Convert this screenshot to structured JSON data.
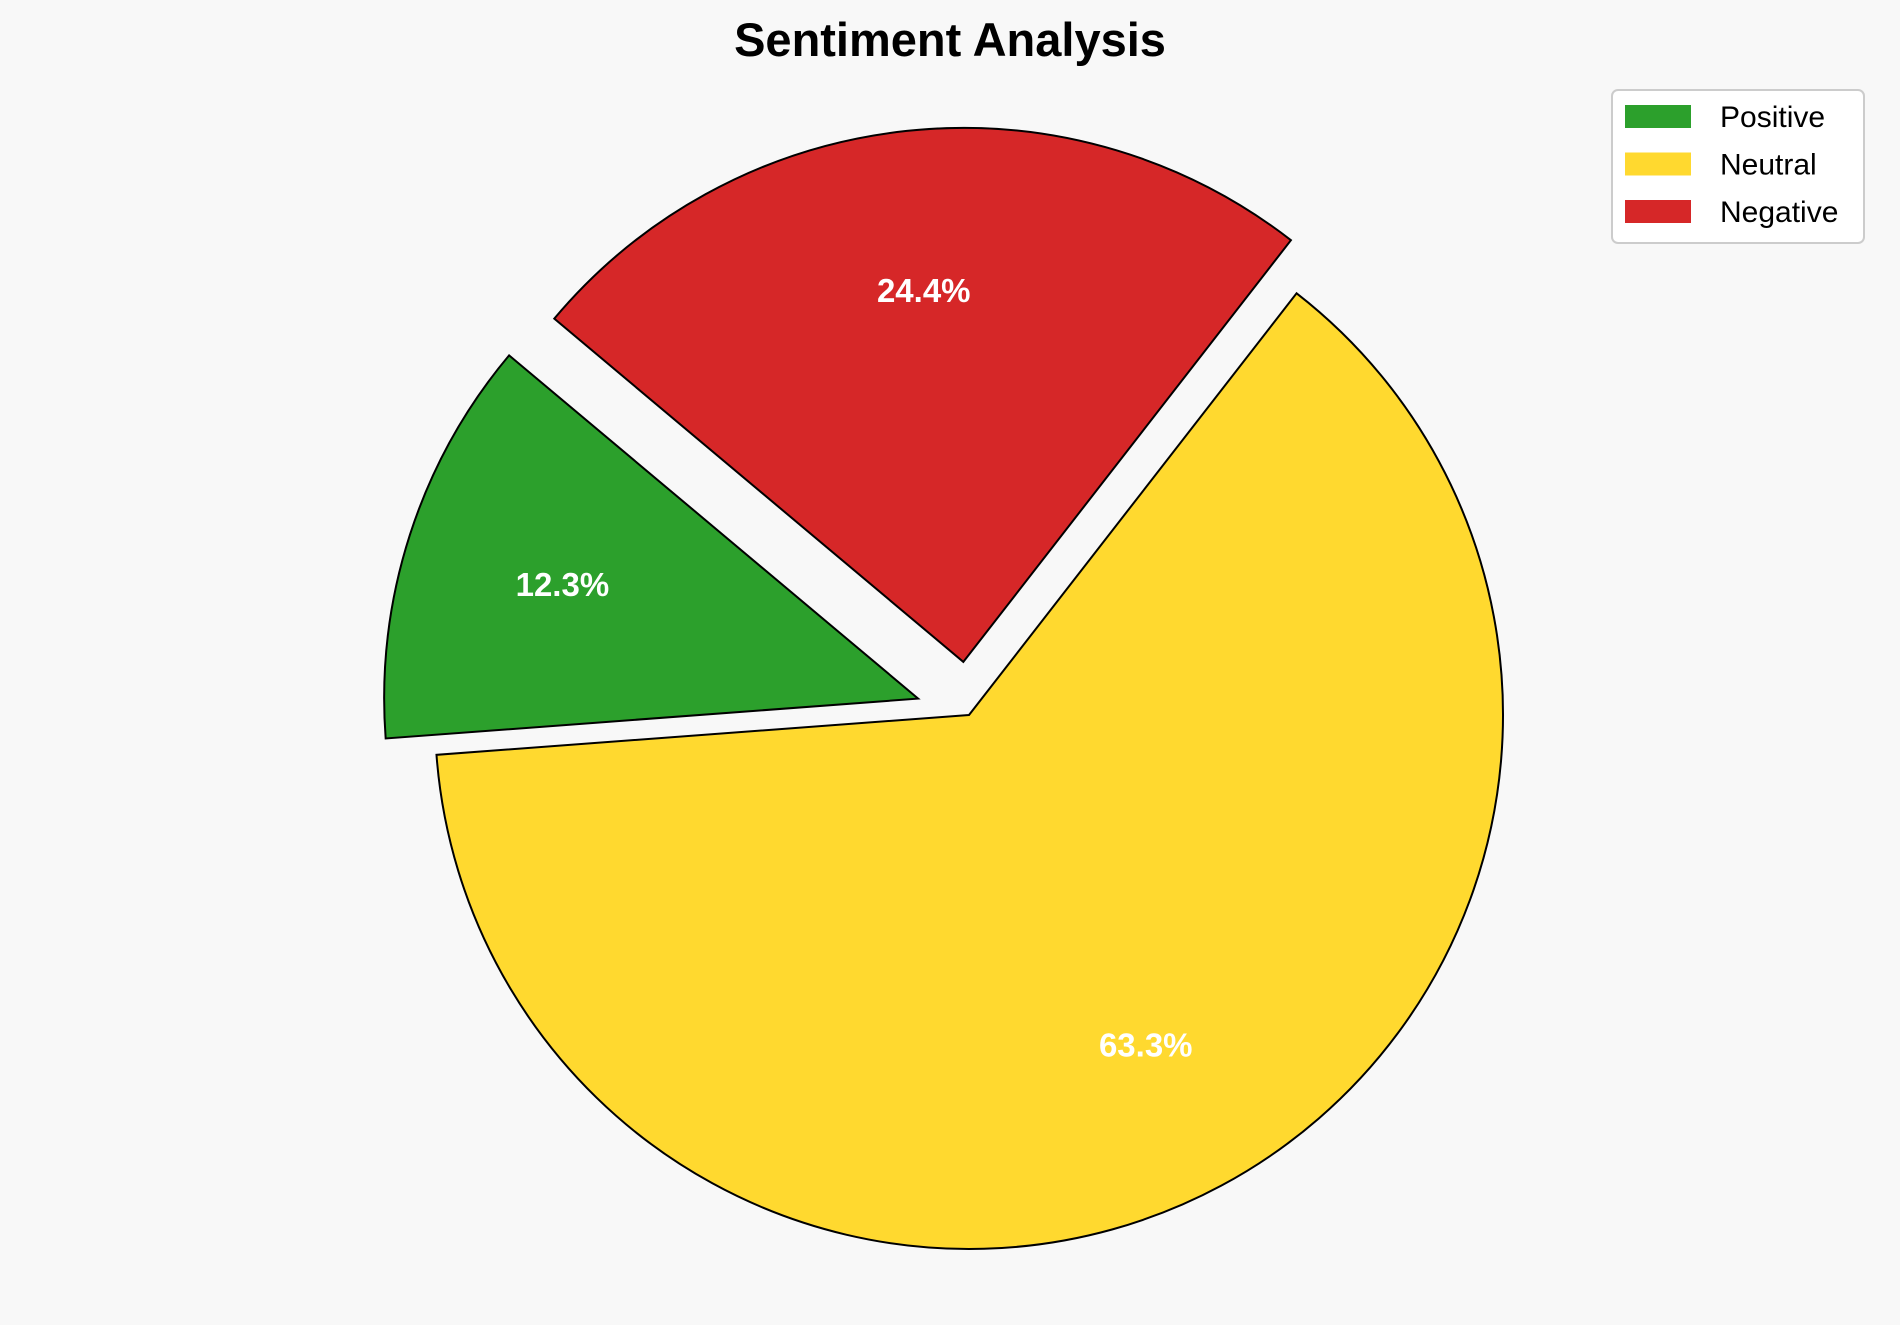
{
  "chart_data": {
    "type": "pie",
    "title": "Sentiment Analysis",
    "categories": [
      "Positive",
      "Neutral",
      "Negative"
    ],
    "values": [
      12.3,
      63.3,
      24.4
    ],
    "labels": [
      "12.3%",
      "63.3%",
      "24.4%"
    ],
    "colors": [
      "#2ca02c",
      "#ffd92f",
      "#d62728"
    ],
    "explode": [
      0.1,
      0,
      0.1
    ],
    "start_angle": 140,
    "direction": "counterclockwise",
    "edge_color": "#000000",
    "label_color": "#ffffff",
    "legend_position": "top-right"
  }
}
